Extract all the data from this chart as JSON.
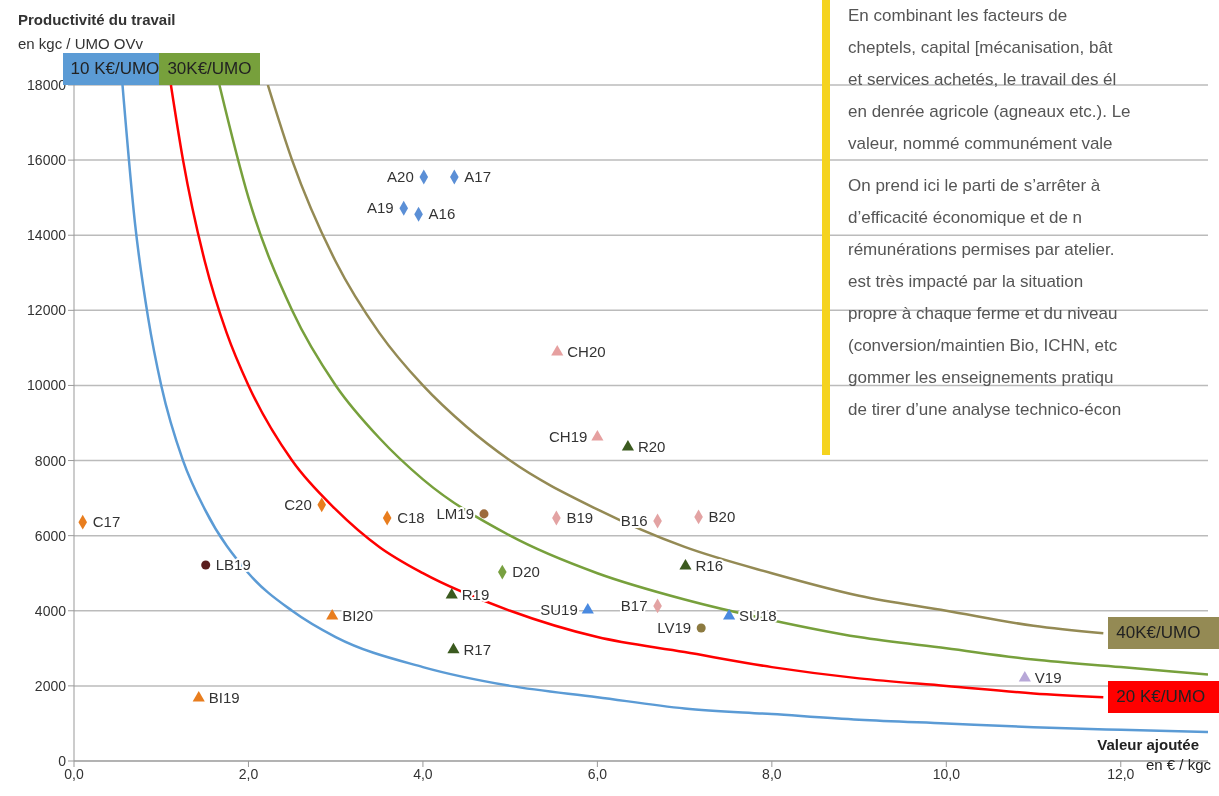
{
  "chart_data": {
    "type": "scatter",
    "ylabel": "Productivité du travail\nen kgc / UMO OVv",
    "xlabel": "Valeur ajoutée\nen € / kgc",
    "xlim": [
      0,
      13
    ],
    "ylim": [
      0,
      18000
    ],
    "xticks": [
      {
        "value": 0,
        "label": "0,0"
      },
      {
        "value": 2,
        "label": "2,0"
      },
      {
        "value": 4,
        "label": "4,0"
      },
      {
        "value": 6,
        "label": "6,0"
      },
      {
        "value": 8,
        "label": "8,0"
      },
      {
        "value": 10,
        "label": "10,0"
      },
      {
        "value": 12,
        "label": "12,0"
      }
    ],
    "yticks": [
      0,
      2000,
      4000,
      6000,
      8000,
      10000,
      12000,
      14000,
      16000,
      18000
    ],
    "grid": "y",
    "annotations": [
      "En combinant les facteurs de",
      "cheptels, capital [mécanisation, bât",
      "et services achetés, le travail des él",
      "en denrée agricole (agneaux etc.). Le",
      "valeur, nommé communément vale",
      "On prend ici le parti de s’arrêter à",
      "d’efficacité économique et de n",
      "rémunérations permises par atelier.",
      "est très impacté par la situation",
      "propre à chaque ferme et du niveau",
      "(conversion/maintien Bio, ICHN, etc",
      "gommer les enseignements pratiqu",
      "de tirer d’une analyse technico-écon"
    ],
    "series": [
      {
        "type": "line",
        "name": "10 K€/UMO",
        "color": "#5b9bd5",
        "x": [
          0.556,
          0.7,
          0.85,
          1,
          1.25,
          1.5,
          2,
          2.5,
          3,
          4,
          5,
          6,
          7,
          8,
          9,
          10,
          11,
          12,
          13
        ],
        "values": [
          18000,
          14300,
          11800,
          10000,
          8000,
          6700,
          5000,
          4000,
          3300,
          2500,
          2000,
          1700,
          1400,
          1250,
          1100,
          1000,
          900,
          830,
          770
        ]
      },
      {
        "type": "line",
        "name": "20 K€/UMO",
        "color": "#ff0000",
        "x": [
          1.111,
          1.25,
          1.5,
          1.75,
          2,
          2.5,
          3,
          3.5,
          4,
          5,
          6,
          7,
          8,
          9,
          10,
          11,
          11.8
        ],
        "values": [
          18000,
          16000,
          13300,
          11400,
          10000,
          8000,
          6700,
          5700,
          5000,
          4000,
          3300,
          2900,
          2500,
          2200,
          2000,
          1800,
          1700
        ]
      },
      {
        "type": "line",
        "name": "30K€/UMO",
        "color": "#77a03c",
        "x": [
          1.667,
          2,
          2.5,
          3,
          3.5,
          4,
          5,
          6,
          7,
          8,
          9,
          10,
          11,
          12,
          13
        ],
        "values": [
          18000,
          15000,
          12000,
          10000,
          8600,
          7500,
          6000,
          5000,
          4300,
          3750,
          3300,
          3000,
          2700,
          2500,
          2300
        ]
      },
      {
        "type": "line",
        "name": "40K€/UMO",
        "color": "#948a54",
        "x": [
          2.222,
          2.5,
          3,
          3.5,
          4,
          4.5,
          5,
          6,
          7,
          8,
          9,
          10,
          11,
          11.8
        ],
        "values": [
          18000,
          16000,
          13300,
          11400,
          10000,
          8900,
          8000,
          6700,
          5700,
          5000,
          4400,
          4000,
          3600,
          3400
        ]
      },
      {
        "marker": "diamond",
        "color": "#5b8fd6",
        "x": [
          4.01,
          4.36,
          3.78,
          3.95
        ],
        "values": [
          15550,
          15550,
          14720,
          14560
        ],
        "value_labels": [
          "A20",
          "A17",
          "A19",
          "A16"
        ]
      },
      {
        "marker": "diamond",
        "color": "#e87d1e",
        "x": [
          0.1,
          2.84,
          3.59
        ],
        "values": [
          6360,
          6820,
          6470
        ],
        "value_labels": [
          "C17",
          "C20",
          "C18"
        ]
      },
      {
        "marker": "triangle",
        "color": "#e6a0a0",
        "x": [
          5.54,
          6.0
        ],
        "values": [
          10890,
          8630
        ],
        "value_labels": [
          "CH20",
          "CH19"
        ]
      },
      {
        "marker": "diamond",
        "color": "#e3a3a3",
        "x": [
          7.16,
          6.69,
          5.53,
          6.69
        ],
        "values": [
          6500,
          6390,
          6470,
          4130
        ],
        "value_labels": [
          "B20",
          "B16",
          "B19",
          "B17"
        ]
      },
      {
        "marker": "triangle",
        "color": "#3b5a1f",
        "x": [
          6.35,
          7.01,
          4.33,
          4.35
        ],
        "values": [
          8360,
          5190,
          4420,
          2960
        ],
        "value_labels": [
          "R20",
          "R16",
          "R19",
          "R17"
        ]
      },
      {
        "marker": "circle",
        "color": "#9c6b3c",
        "x": [
          4.7
        ],
        "values": [
          6580
        ],
        "value_labels": [
          "LM19"
        ]
      },
      {
        "marker": "circle",
        "color": "#5a1e1e",
        "x": [
          1.51
        ],
        "values": [
          5220
        ],
        "value_labels": [
          "LB19"
        ]
      },
      {
        "marker": "diamond",
        "color": "#78a040",
        "x": [
          4.91
        ],
        "values": [
          5030
        ],
        "value_labels": [
          "D20"
        ]
      },
      {
        "marker": "triangle",
        "color": "#4a8ae0",
        "x": [
          5.89,
          7.51
        ],
        "values": [
          4020,
          3860
        ],
        "value_labels": [
          "SU19",
          "SU18"
        ]
      },
      {
        "marker": "circle",
        "color": "#8c7a40",
        "x": [
          7.19
        ],
        "values": [
          3540
        ],
        "value_labels": [
          "LV19"
        ]
      },
      {
        "marker": "triangle",
        "color": "#e87d1e",
        "x": [
          2.96,
          1.43
        ],
        "values": [
          3860,
          1680
        ],
        "value_labels": [
          "BI20",
          "BI19"
        ]
      },
      {
        "marker": "triangle",
        "color": "#b8a8d8",
        "x": [
          10.9
        ],
        "values": [
          2210
        ],
        "value_labels": [
          "V19"
        ]
      }
    ]
  }
}
